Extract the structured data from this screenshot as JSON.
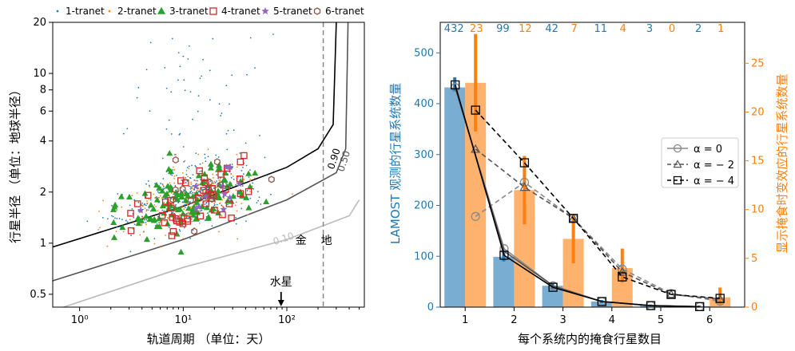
{
  "chart_data": [
    {
      "type": "scatter",
      "xlabel": "轨道周期 （单位：天）",
      "ylabel": "行星半径 （单位：地球半径）",
      "xscale": "log",
      "yscale": "log",
      "xlim": [
        0.55,
        560
      ],
      "ylim": [
        0.42,
        20
      ],
      "xticks": [
        {
          "v": 1,
          "l": "10⁰"
        },
        {
          "v": 10,
          "l": "10¹"
        },
        {
          "v": 100,
          "l": "10²"
        }
      ],
      "yticks": [
        {
          "v": 0.5,
          "l": "0.5"
        },
        {
          "v": 1,
          "l": "1"
        },
        {
          "v": 2,
          "l": "2"
        },
        {
          "v": 4,
          "l": "4"
        },
        {
          "v": 6,
          "l": "6"
        },
        {
          "v": 8,
          "l": "8"
        },
        {
          "v": 10,
          "l": "10"
        },
        {
          "v": 20,
          "l": "20"
        }
      ],
      "legend_position": "top",
      "series": [
        {
          "name": "1-tranet",
          "color": "#1f77b4",
          "marker": "dot"
        },
        {
          "name": "2-tranet",
          "color": "#ff7f0e",
          "marker": "dot"
        },
        {
          "name": "3-tranet",
          "color": "#2ca02c",
          "marker": "triangle"
        },
        {
          "name": "4-tranet",
          "color": "#d62728",
          "marker": "square"
        },
        {
          "name": "5-tranet",
          "color": "#9467bd",
          "marker": "star"
        },
        {
          "name": "6-tranet",
          "color": "#8c564b",
          "marker": "hexagon"
        }
      ],
      "contours": [
        {
          "label": "0.90",
          "color": "#000000",
          "points": [
            [
              0.55,
              0.95
            ],
            [
              10,
              1.65
            ],
            [
              100,
              2.8
            ],
            [
              200,
              3.6
            ],
            [
              280,
              5.0
            ],
            [
              300,
              20
            ]
          ]
        },
        {
          "label": "0.50",
          "color": "#555555",
          "points": [
            [
              0.55,
              0.6
            ],
            [
              10,
              1.05
            ],
            [
              100,
              1.8
            ],
            [
              300,
              2.6
            ],
            [
              370,
              3.6
            ],
            [
              390,
              20
            ]
          ]
        },
        {
          "label": "0.10",
          "color": "#bbbbbb",
          "points": [
            [
              0.7,
              0.42
            ],
            [
              10,
              0.72
            ],
            [
              100,
              1.05
            ],
            [
              400,
              1.45
            ],
            [
              500,
              1.8
            ]
          ]
        }
      ],
      "vline": {
        "x": 224.7,
        "label": "金",
        "color": "#888888"
      },
      "annotations": [
        {
          "text": "水星",
          "x": 88,
          "y": 0.53
        },
        {
          "text": "地",
          "x": 350,
          "y": 0.98
        }
      ]
    },
    {
      "type": "bar",
      "xlabel": "每个系统内的掩食行星数目",
      "ylabel_left": "LAMOST 观测的行星系统数量",
      "ylabel_right": "显示掩食时变效应的行星系统数量",
      "categories": [
        1,
        2,
        3,
        4,
        5,
        6
      ],
      "ylim_left": [
        0,
        560
      ],
      "ylim_right": [
        0,
        29.2
      ],
      "yticks_left": [
        0,
        100,
        200,
        300,
        400,
        500
      ],
      "yticks_right": [
        0,
        5,
        10,
        15,
        20,
        25
      ],
      "series": [
        {
          "name": "LAMOST",
          "color": "#1f77b4",
          "axis": "left",
          "values": [
            432,
            99,
            42,
            11,
            3,
            2
          ],
          "err": [
            [
              425,
              452
            ],
            [
              90,
              108
            ],
            [
              36,
              48
            ],
            [
              8,
              14
            ],
            [
              2,
              5
            ],
            [
              1,
              3
            ]
          ]
        },
        {
          "name": "TTV",
          "color": "#ff7f0e",
          "axis": "right",
          "values": [
            23,
            12,
            7,
            4,
            0,
            1
          ],
          "err": [
            [
              18,
              28
            ],
            [
              8.5,
              15.5
            ],
            [
              4.5,
              9.5
            ],
            [
              2.5,
              6
            ],
            [
              0,
              0
            ],
            [
              0.2,
              2
            ]
          ]
        }
      ],
      "top_labels": {
        "left": [
          "432",
          "99",
          "42",
          "11",
          "3",
          "2"
        ],
        "right": [
          "23",
          "12",
          "7",
          "4",
          "0",
          "1"
        ]
      },
      "lines": [
        {
          "name": "α = 0",
          "color": "#888888",
          "marker": "circle",
          "style": "solid",
          "left": [
            [
              1,
              432
            ],
            [
              2,
              115
            ],
            [
              3,
              42
            ],
            [
              4,
              11
            ],
            [
              5,
              3
            ],
            [
              6,
              1
            ]
          ],
          "right": [
            [
              1.22,
              9.3
            ],
            [
              2.22,
              12.8
            ],
            [
              3.22,
              9.1
            ],
            [
              4.22,
              3.9
            ],
            [
              5.22,
              1.4
            ],
            [
              6.22,
              0.6
            ]
          ]
        },
        {
          "name": "α = − 2",
          "color": "#555555",
          "marker": "triangle",
          "style": "dashed",
          "left": [
            [
              1,
              432
            ],
            [
              2,
              110
            ],
            [
              3,
              42
            ],
            [
              4,
              11
            ],
            [
              5,
              3
            ],
            [
              6,
              1
            ]
          ],
          "right": [
            [
              1.22,
              16.2
            ],
            [
              2.22,
              12.3
            ],
            [
              3.22,
              9.1
            ],
            [
              4.22,
              3.6
            ],
            [
              5.22,
              1.3
            ],
            [
              6.22,
              0.8
            ]
          ]
        },
        {
          "name": "α = − 4",
          "color": "#000000",
          "marker": "square",
          "style": "dashed",
          "left": [
            [
              1,
              437
            ],
            [
              2,
              102
            ],
            [
              3,
              39
            ],
            [
              4,
              11
            ],
            [
              5,
              3
            ],
            [
              6,
              1
            ]
          ],
          "right": [
            [
              1.22,
              20.2
            ],
            [
              2.22,
              14.8
            ],
            [
              3.22,
              9.1
            ],
            [
              4.22,
              3.1
            ],
            [
              5.22,
              1.3
            ],
            [
              6.22,
              0.9
            ]
          ]
        }
      ],
      "legend_position": "right",
      "legend": [
        "α = 0",
        "α = − 2",
        "α = − 4"
      ]
    }
  ]
}
